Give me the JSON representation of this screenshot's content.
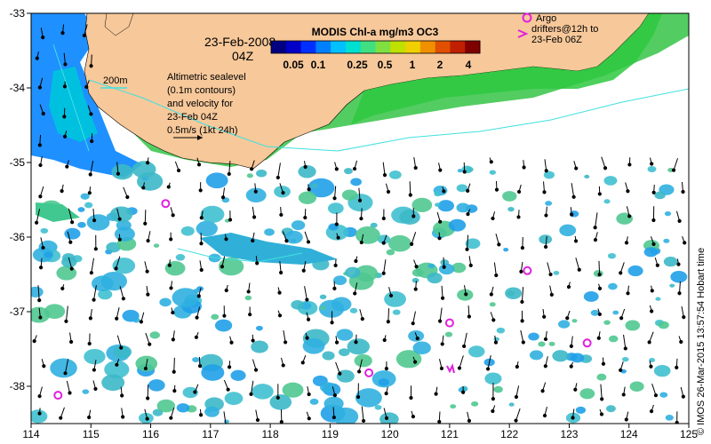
{
  "title": {
    "date": "23-Feb-2008",
    "hour": "04Z"
  },
  "colorbar": {
    "title": "MODIS Chl-a mg/m3 OC3",
    "ticks": [
      "0.05",
      "0.1",
      "0.25",
      "0.5",
      "1",
      "2",
      "4"
    ],
    "colors": [
      "#000080",
      "#0000c8",
      "#0030ff",
      "#0080ff",
      "#00c0ff",
      "#00e0d0",
      "#40e080",
      "#80e040",
      "#c0e000",
      "#f0d000",
      "#f09000",
      "#e05000",
      "#c02000",
      "#800000"
    ]
  },
  "contour_label": "200m",
  "legend_text": [
    "Altimetric sealevel",
    "(0.1m contours)",
    "and velocity for",
    "23-Feb 04Z",
    "0.5m/s (1kt 24h)"
  ],
  "argo_legend": {
    "argo_label": "Argo",
    "drifter_line1": "drifters@12h to",
    "drifter_line2": "23-Feb 06Z"
  },
  "credit": "© IMOS 26-Mar-2015 13:57:54 Hobart time",
  "axes": {
    "x_ticks": [
      "114",
      "115",
      "116",
      "117",
      "118",
      "119",
      "120",
      "121",
      "122",
      "123",
      "124",
      "125"
    ],
    "y_ticks": [
      "-33",
      "-34",
      "-35",
      "-36",
      "-37",
      "-38"
    ]
  },
  "colors": {
    "land": "#f7c89a",
    "frame": "#000000",
    "argo": "#e020e0",
    "contour": "#40e0e0"
  },
  "argo_floats": [
    {
      "lon": 114.45,
      "lat": -38.12
    },
    {
      "lon": 116.25,
      "lat": -35.55
    },
    {
      "lon": 119.65,
      "lat": -37.82
    },
    {
      "lon": 121.0,
      "lat": -37.15
    },
    {
      "lon": 122.3,
      "lat": -36.45
    },
    {
      "lon": 123.3,
      "lat": -37.42
    }
  ]
}
